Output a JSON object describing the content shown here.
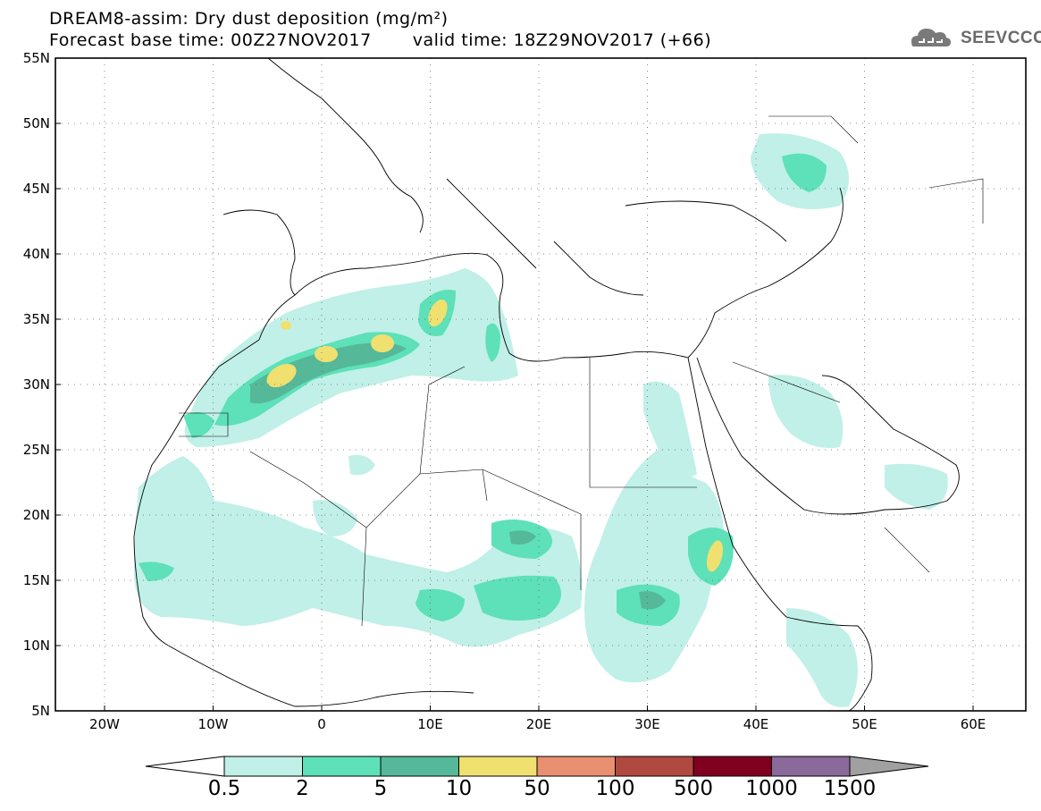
{
  "header": {
    "title": "DREAM8-assim: Dry dust deposition (mg/m²)",
    "forecast_base": "Forecast base time: 00Z27NOV2017",
    "valid_time": "valid time: 18Z29NOV2017 (+66)"
  },
  "logo": {
    "text": "SEEVCCC",
    "icon": "cloud-logo-icon"
  },
  "map": {
    "lat_labels": [
      "55N",
      "50N",
      "45N",
      "40N",
      "35N",
      "30N",
      "25N",
      "20N",
      "15N",
      "10N",
      "5N"
    ],
    "lon_labels": [
      "20W",
      "10W",
      "0",
      "10E",
      "20E",
      "30E",
      "40E",
      "50E",
      "60E"
    ],
    "grid": "dotted"
  },
  "colorbar": {
    "levels": [
      "0.5",
      "2",
      "5",
      "10",
      "50",
      "100",
      "500",
      "1000",
      "1500"
    ],
    "colors": [
      "#ffffff",
      "#c0f0e8",
      "#5ee0b8",
      "#55b898",
      "#f0e070",
      "#e89070",
      "#b04a40",
      "#800020",
      "#8a6a9a",
      "#a0a0a0"
    ]
  }
}
